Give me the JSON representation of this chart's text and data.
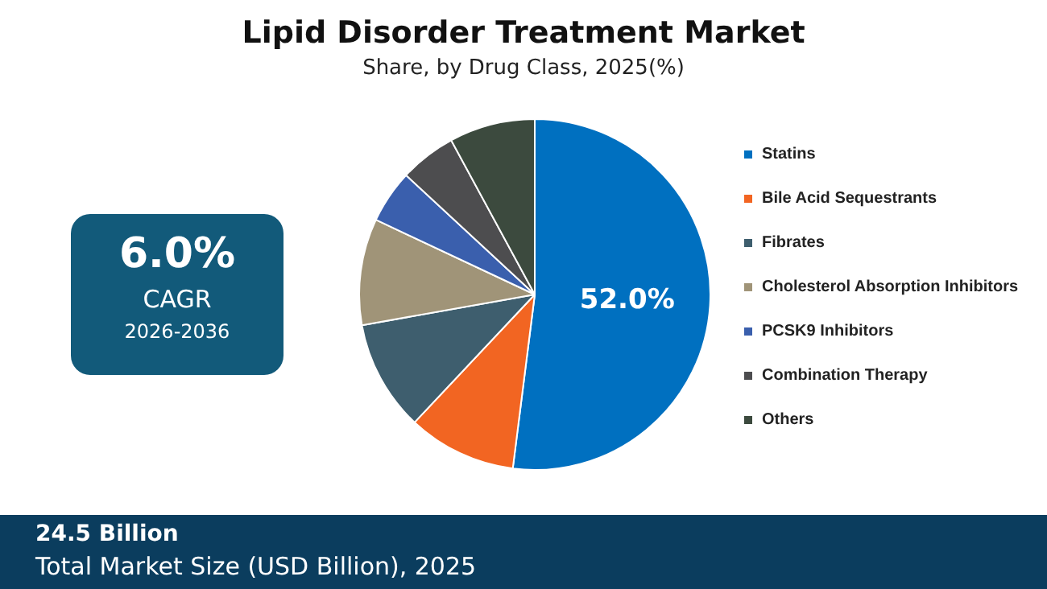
{
  "chart_data": {
    "type": "pie",
    "title": "Lipid Disorder Treatment Market",
    "subtitle": "Share, by Drug Class, 2025(%)",
    "categories": [
      "Statins",
      "Bile Acid Sequestrants",
      "Fibrates",
      "Cholesterol Absorption Inhibitors",
      "PCSK9 Inhibitors",
      "Combination Therapy",
      "Others"
    ],
    "values": [
      52,
      10,
      10.2,
      9.8,
      4.9,
      5.2,
      7.9
    ],
    "colors": [
      "#0070c0",
      "#f26522",
      "#3e5e6e",
      "#a09478",
      "#3a5fad",
      "#4d4d4f",
      "#3c4a3e"
    ],
    "value_labels": [
      "52.0%",
      null,
      null,
      null,
      null,
      null,
      null
    ],
    "legend": "right",
    "annotations": [
      "6.0%",
      "CAGR",
      "2026-2036",
      "24.5 Billion",
      "Total Market Size (USD Billion), 2025"
    ]
  }
}
